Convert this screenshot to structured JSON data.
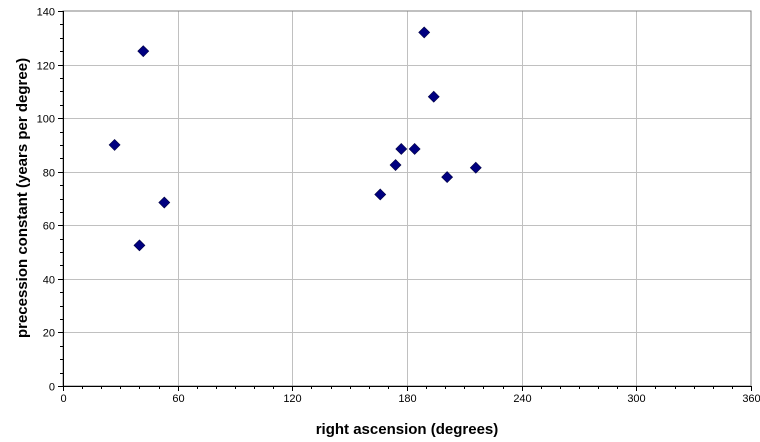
{
  "chart_data": {
    "type": "scatter",
    "title": "",
    "xlabel": "right ascension (degrees)",
    "ylabel": "precession constant (years per degree)",
    "xlim": [
      0,
      360
    ],
    "ylim": [
      0,
      140
    ],
    "x_ticks": [
      0,
      60,
      120,
      180,
      240,
      300,
      360
    ],
    "y_ticks": [
      0,
      20,
      40,
      60,
      80,
      100,
      120,
      140
    ],
    "x_tick_labels": [
      "0",
      "60",
      "120",
      "180",
      "240",
      "300",
      "360"
    ],
    "y_tick_labels": [
      "0",
      "20",
      "40",
      "60",
      "80",
      "100",
      "120",
      "140"
    ],
    "grid": true,
    "legend": "none",
    "marker": "diamond",
    "marker_color": "#000080",
    "gridline_color": "#c0c0c0",
    "series": [
      {
        "x": [
          27,
          40,
          42,
          53,
          166,
          174,
          177,
          184,
          189,
          194,
          201,
          216
        ],
        "y": [
          90,
          52.5,
          125,
          68.5,
          71.5,
          82.5,
          88.5,
          88.5,
          132,
          108,
          78,
          81.5
        ]
      }
    ]
  }
}
